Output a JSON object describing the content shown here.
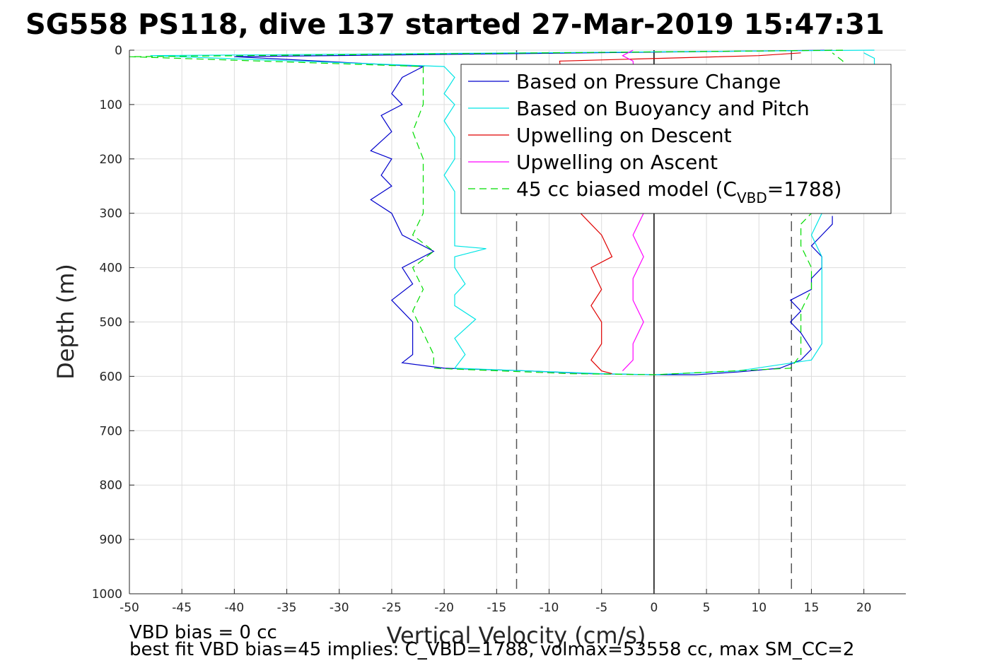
{
  "title": "SG558 PS118, dive 137 started 27-Mar-2019 15:47:31",
  "notes": {
    "line1": "VBD bias = 0 cc",
    "line2": "best fit VBD bias=45 implies: C_VBD=1788, volmax=53558 cc, max SM_CC=2"
  },
  "chart_data": {
    "type": "line",
    "xlabel": "Vertical Velocity (cm/s)",
    "ylabel": "Depth (m)",
    "xlim": [
      -50,
      24
    ],
    "ylim": [
      0,
      1000
    ],
    "y_reversed": true,
    "grid": true,
    "xticks": [
      -50,
      -45,
      -40,
      -35,
      -30,
      -25,
      -20,
      -15,
      -10,
      -5,
      0,
      5,
      10,
      15,
      20
    ],
    "yticks": [
      0,
      100,
      200,
      300,
      400,
      500,
      600,
      700,
      800,
      900,
      1000
    ],
    "legend_position": "top-right",
    "reference_lines": [
      {
        "x": -13.1,
        "style": "dashed",
        "color": "#555555"
      },
      {
        "x": 0,
        "style": "solid",
        "color": "#000000"
      },
      {
        "x": 13.1,
        "style": "dashed",
        "color": "#555555"
      }
    ],
    "series": [
      {
        "name": "Based on Pressure Change",
        "color": "#0000cc",
        "style": "solid",
        "depth": [
          0,
          12,
          30,
          50,
          80,
          100,
          120,
          150,
          185,
          200,
          230,
          250,
          275,
          300,
          340,
          370,
          400,
          430,
          460,
          480,
          500,
          530,
          560,
          575,
          585,
          590,
          595,
          597,
          597,
          592,
          585,
          570,
          550,
          520,
          500,
          480,
          460,
          440,
          420,
          400,
          380,
          360,
          340,
          320,
          305
        ],
        "velocity": [
          17,
          -40,
          -22,
          -24,
          -25,
          -24,
          -26,
          -25,
          -27,
          -25,
          -26,
          -25,
          -27,
          -25,
          -24,
          -21,
          -24,
          -23,
          -25,
          -24,
          -23,
          -23,
          -23,
          -24,
          -20,
          -12,
          -6,
          0,
          4,
          8,
          12,
          14,
          15,
          14,
          13,
          14,
          13,
          15,
          15,
          16,
          16,
          15,
          16,
          17,
          17
        ]
      },
      {
        "name": "Based on Buoyancy and Pitch",
        "color": "#00e5e5",
        "style": "solid",
        "depth": [
          0,
          10,
          30,
          50,
          80,
          100,
          130,
          160,
          200,
          230,
          260,
          300,
          330,
          360,
          365,
          380,
          400,
          430,
          450,
          470,
          495,
          530,
          560,
          585,
          590,
          595,
          597,
          590,
          570,
          540,
          500,
          460,
          420,
          380,
          340,
          300,
          200,
          100,
          60,
          30,
          15,
          5
        ],
        "velocity": [
          21,
          -48,
          -20,
          -19,
          -20,
          -19,
          -20,
          -19,
          -19,
          -20,
          -19,
          -19,
          -19,
          -19,
          -16,
          -19,
          -19,
          -18,
          -19,
          -19,
          -17,
          -19,
          -18,
          -19,
          -12,
          -5,
          0,
          8,
          15,
          16,
          16,
          16,
          16,
          16,
          15,
          16,
          18,
          19,
          20,
          21,
          21,
          20
        ]
      },
      {
        "name": "Upwelling on Descent",
        "color": "#e00000",
        "style": "solid",
        "depth": [
          5,
          10,
          20,
          300,
          340,
          380,
          400,
          440,
          470,
          500,
          540,
          570,
          590,
          595
        ],
        "velocity": [
          14,
          10,
          -9,
          -7,
          -5,
          -4,
          -6,
          -5,
          -6,
          -5,
          -5,
          -6,
          -5,
          -4
        ]
      },
      {
        "name": "Upwelling on Ascent",
        "color": "#ff00ff",
        "style": "solid",
        "depth": [
          0,
          10,
          20,
          300,
          340,
          380,
          420,
          460,
          500,
          540,
          570,
          590
        ],
        "velocity": [
          -2,
          -3,
          -2,
          -1,
          -2,
          -1,
          -2,
          -2,
          -1,
          -2,
          -2,
          -3
        ]
      },
      {
        "name": "45 cc biased model (C",
        "color": "#00dd00",
        "style": "dashed",
        "depth": [
          0,
          12,
          30,
          60,
          100,
          150,
          200,
          250,
          300,
          340,
          370,
          400,
          440,
          480,
          520,
          560,
          585,
          595,
          597,
          585,
          560,
          520,
          480,
          440,
          400,
          360,
          320,
          300,
          100,
          20,
          5
        ],
        "velocity": [
          18,
          -50,
          -22,
          -22,
          -22,
          -23,
          -22,
          -22,
          -22,
          -23,
          -21,
          -23,
          -22,
          -23,
          -22,
          -21,
          -21,
          -8,
          0,
          13,
          14,
          14,
          14,
          15,
          15,
          14,
          14,
          15,
          17,
          18,
          17
        ]
      }
    ],
    "legend_subscript": "VBD",
    "legend_suffix": "=1788)"
  }
}
